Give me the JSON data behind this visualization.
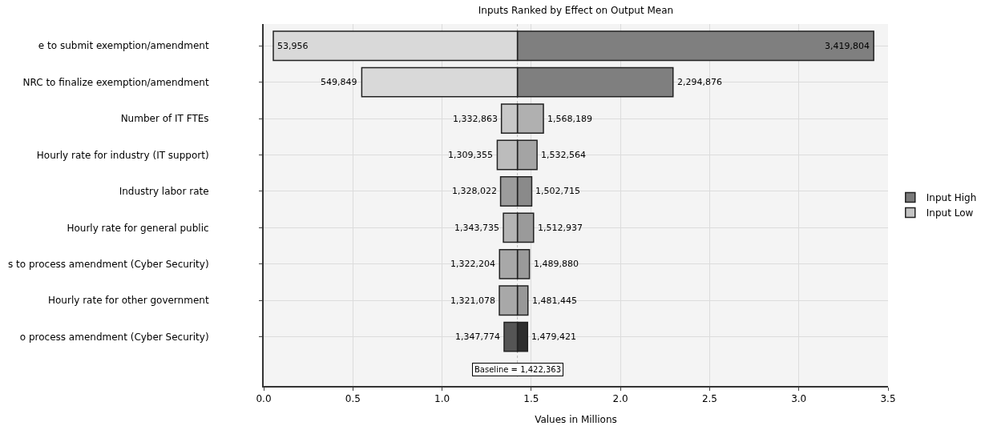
{
  "chart_data": {
    "type": "bar",
    "orientation": "horizontal",
    "title": "Inputs Ranked by Effect on Output Mean",
    "xlabel": "Values in Millions",
    "categories": [
      "e to submit exemption/amendment",
      "NRC to finalize exemption/amendment",
      "Number of IT FTEs",
      "Hourly rate for industry (IT support)",
      "Industry labor rate",
      "Hourly rate for general public",
      "s to process amendment (Cyber Security)",
      "Hourly rate for other government",
      "o process amendment (Cyber Security)"
    ],
    "series": [
      {
        "name": "Input High",
        "color": "#7a7a7a",
        "colors": [
          "#7f7f7f",
          "#7f7f7f",
          "#b0b0b0",
          "#a4a4a4",
          "#8a8a8a",
          "#9a9a9a",
          "#9a9a9a",
          "#989898",
          "#2e2e2e"
        ],
        "base": [
          1.422363,
          1.422363,
          1.422363,
          1.422363,
          1.422363,
          1.422363,
          1.422363,
          1.422363,
          1.422363
        ],
        "values": [
          1.997441,
          0.872513,
          0.145826,
          0.110201,
          0.080352,
          0.090574,
          0.067517,
          0.059082,
          0.057058
        ]
      },
      {
        "name": "Input Low",
        "color": "#c4c4c4",
        "colors": [
          "#d9d9d9",
          "#d9d9d9",
          "#c8c8c8",
          "#bcbcbc",
          "#9c9c9c",
          "#b4b4b4",
          "#a8a8a8",
          "#a8a8a8",
          "#555555"
        ],
        "base": [
          1.422363,
          1.422363,
          1.422363,
          1.422363,
          1.422363,
          1.422363,
          1.422363,
          1.422363,
          1.422363
        ],
        "values": [
          -1.368407,
          -0.872514,
          -0.0895,
          -0.113008,
          -0.094341,
          -0.078628,
          -0.100159,
          -0.101285,
          -0.074589
        ]
      }
    ],
    "annotations": [
      {
        "text": "3,419,804",
        "x": 3.419804,
        "y": "e to submit exemption/amendment"
      },
      {
        "text": "2,294,876",
        "x": 2.294876,
        "y": "NRC to finalize exemption/amendment"
      },
      {
        "text": "1,568,189",
        "x": 1.568189,
        "y": "Number of IT FTEs"
      },
      {
        "text": "1,532,564",
        "x": 1.532564,
        "y": "Hourly rate for industry (IT support)"
      },
      {
        "text": "1,502,715",
        "x": 1.502715,
        "y": "Industry labor rate"
      },
      {
        "text": "1,512,937",
        "x": 1.512937,
        "y": "Hourly rate for general public"
      },
      {
        "text": "1,489,880",
        "x": 1.48988,
        "y": "s to process amendment (Cyber Security)"
      },
      {
        "text": "1,481,445",
        "x": 1.481445,
        "y": "Hourly rate for other government"
      },
      {
        "text": "1,479,421",
        "x": 1.479421,
        "y": "o process amendment (Cyber Security)"
      },
      {
        "text": "53,956",
        "x": 0.053956,
        "y": "e to submit exemption/amendment"
      },
      {
        "text": "549,849",
        "x": 0.549849,
        "y": "NRC to finalize exemption/amendment"
      },
      {
        "text": "1,332,863",
        "x": 1.332863,
        "y": "Number of IT FTEs"
      },
      {
        "text": "1,309,355",
        "x": 1.309355,
        "y": "Hourly rate for industry (IT support)"
      },
      {
        "text": "1,328,022",
        "x": 1.328022,
        "y": "Industry labor rate"
      },
      {
        "text": "1,343,735",
        "x": 1.343735,
        "y": "Hourly rate for general public"
      },
      {
        "text": "1,322,204",
        "x": 1.322204,
        "y": "s to process amendment (Cyber Security)"
      },
      {
        "text": "1,321,078",
        "x": 1.321078,
        "y": "Hourly rate for other government"
      },
      {
        "text": "1,347,774",
        "x": 1.347774,
        "y": "o process amendment (Cyber Security)"
      }
    ],
    "xlim": [
      0,
      3.5
    ],
    "xticks": [
      {
        "value": 0,
        "label": "0.0"
      },
      {
        "value": 0.5,
        "label": "0.5"
      },
      {
        "value": 1,
        "label": "1.0"
      },
      {
        "value": 1.5,
        "label": "1.5"
      },
      {
        "value": 2,
        "label": "2.0"
      },
      {
        "value": 2.5,
        "label": "2.5"
      },
      {
        "value": 3,
        "label": "3.0"
      },
      {
        "value": 3.5,
        "label": "3.5"
      }
    ],
    "ref_lines": [
      {
        "axis": "x",
        "value": 1.422363,
        "label": "Baseline = 1,422,363",
        "color": "#bbbbbb",
        "line_style": "dotted"
      }
    ],
    "grid": true,
    "legend": "right"
  }
}
